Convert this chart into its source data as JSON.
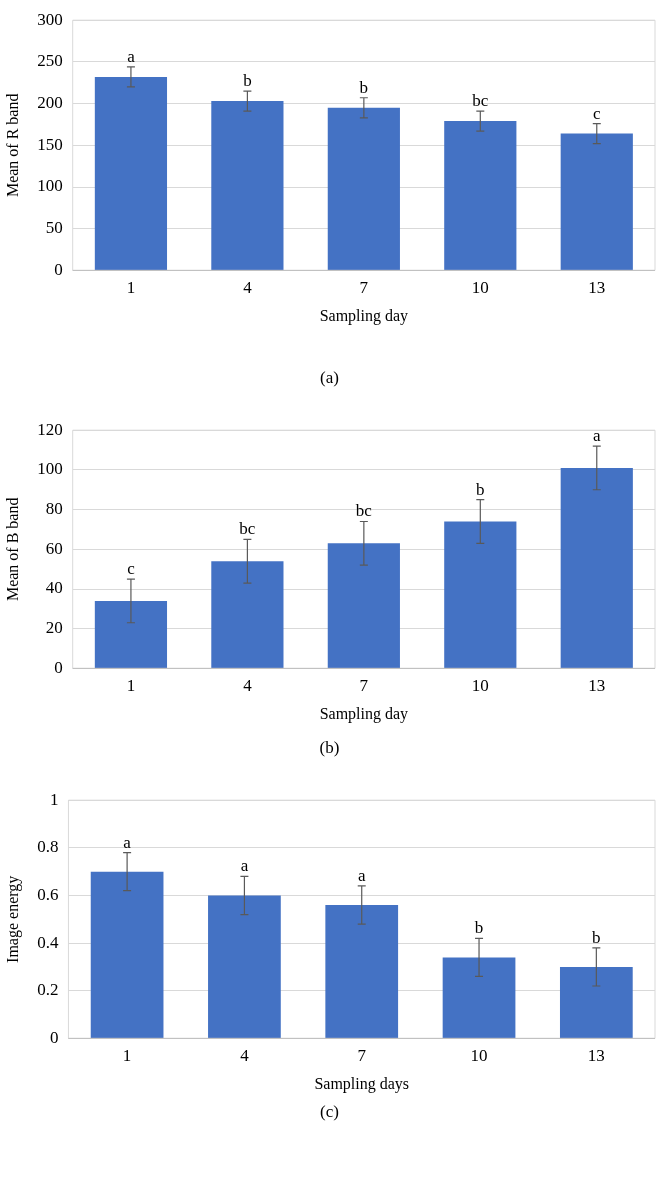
{
  "chart_data": [
    {
      "type": "bar",
      "categories": [
        "1",
        "4",
        "7",
        "10",
        "13"
      ],
      "values": [
        232,
        203,
        195,
        179,
        164
      ],
      "errors": [
        12,
        12,
        12,
        12,
        12
      ],
      "color": "#4472c4",
      "xlabel": "Sampling day",
      "ylabel": "Mean of R band",
      "ylim": [
        0,
        300
      ],
      "yticks": [
        0,
        50,
        100,
        150,
        200,
        250,
        300
      ],
      "grid": "y",
      "annotations": [
        {
          "text": "a",
          "x": "1",
          "y": 244
        },
        {
          "text": "b",
          "x": "4",
          "y": 215
        },
        {
          "text": "b",
          "x": "7",
          "y": 207
        },
        {
          "text": "bc",
          "x": "10",
          "y": 191
        },
        {
          "text": "c",
          "x": "13",
          "y": 176
        },
        "(a)"
      ]
    },
    {
      "type": "bar",
      "categories": [
        "1",
        "4",
        "7",
        "10",
        "13"
      ],
      "values": [
        34,
        54,
        63,
        74,
        101
      ],
      "errors": [
        11,
        11,
        11,
        11,
        11
      ],
      "color": "#4472c4",
      "xlabel": "Sampling day",
      "ylabel": "Mean of B band",
      "ylim": [
        0,
        120
      ],
      "yticks": [
        0,
        20,
        40,
        60,
        80,
        100,
        120
      ],
      "grid": "y",
      "annotations": [
        {
          "text": "c",
          "x": "1",
          "y": 45
        },
        {
          "text": "bc",
          "x": "4",
          "y": 65
        },
        {
          "text": "bc",
          "x": "7",
          "y": 74
        },
        {
          "text": "b",
          "x": "10",
          "y": 85
        },
        {
          "text": "a",
          "x": "13",
          "y": 112
        },
        "(b)"
      ]
    },
    {
      "type": "bar",
      "categories": [
        "1",
        "4",
        "7",
        "10",
        "13"
      ],
      "values": [
        0.7,
        0.6,
        0.56,
        0.34,
        0.3
      ],
      "errors": [
        0.08,
        0.08,
        0.08,
        0.08,
        0.08
      ],
      "color": "#4472c4",
      "xlabel": "Sampling days",
      "ylabel": "Image energy",
      "ylim": [
        0,
        1
      ],
      "yticks": [
        0,
        0.2,
        0.4,
        0.6,
        0.8,
        1
      ],
      "grid": "y",
      "annotations": [
        {
          "text": "a",
          "x": "1",
          "y": 0.78
        },
        {
          "text": "a",
          "x": "4",
          "y": 0.68
        },
        {
          "text": "a",
          "x": "7",
          "y": 0.64
        },
        {
          "text": "b",
          "x": "10",
          "y": 0.42
        },
        {
          "text": "b",
          "x": "13",
          "y": 0.38
        },
        "(c)"
      ]
    }
  ]
}
